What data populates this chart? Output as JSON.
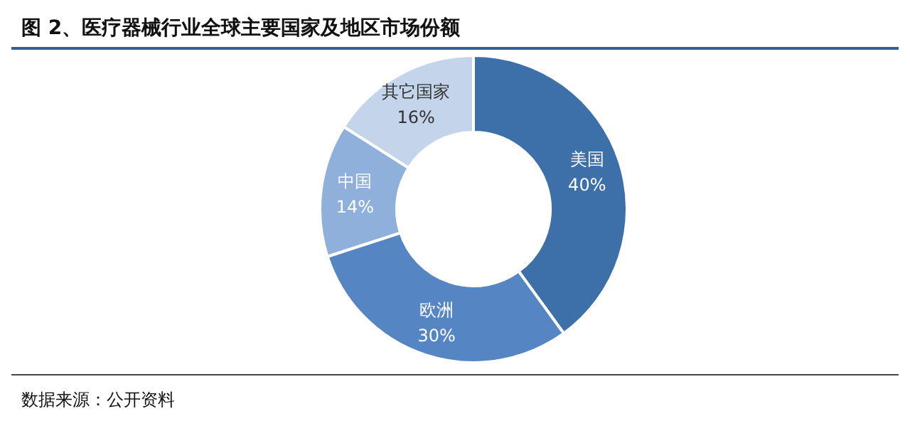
{
  "chart_data": {
    "type": "donut",
    "title": "图 2、医疗器械行业全球主要国家及地区市场份额",
    "categories": [
      "美国",
      "欧洲",
      "中国",
      "其它国家"
    ],
    "values": [
      40,
      30,
      14,
      16
    ],
    "value_labels": [
      "40%",
      "30%",
      "14%",
      "16%"
    ],
    "colors": [
      "#3d6fa8",
      "#5585c2",
      "#8fb0da",
      "#c3d4eb"
    ],
    "annotations": [
      "数据来源：公开资料"
    ]
  }
}
